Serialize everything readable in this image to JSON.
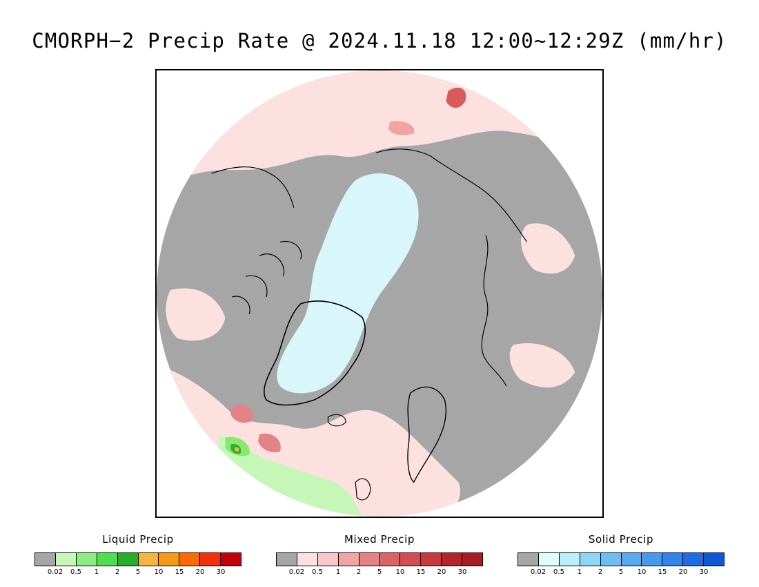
{
  "title": "CMORPH−2 Precip Rate @ 2024.11.18 12:00~12:29Z (mm/hr)",
  "map": {
    "projection": "north-polar-stereographic",
    "colors": {
      "no_precip": "#a6a6a6",
      "ocean_light_mixed": "#fde1e1",
      "mixed_medium": "#f5b8b8",
      "mixed_heavy": "#d65b5b",
      "solid_light": "#d9f7fb",
      "liquid_light": "#c6f7b9",
      "liquid_medium": "#86ea6e",
      "liquid_heavy": "#2fae2f",
      "liquid_extreme": "#f6b542",
      "coastline": "#000000"
    }
  },
  "legends": [
    {
      "name": "liquid",
      "title": "Liquid Precip",
      "colors": [
        "#a6a6a6",
        "#c6f7b9",
        "#8deb82",
        "#4fde4f",
        "#27ad27",
        "#f6b542",
        "#f69a16",
        "#fd6a05",
        "#f2300d",
        "#c4000b"
      ],
      "ticks": [
        "0.02",
        "0.5",
        "1",
        "2",
        "5",
        "10",
        "15",
        "20",
        "30"
      ]
    },
    {
      "name": "mixed",
      "title": "Mixed Precip",
      "colors": [
        "#a6a6a6",
        "#fde1e1",
        "#f9c7c8",
        "#f1a3a6",
        "#e58288",
        "#da6366",
        "#d44d52",
        "#c7393d",
        "#b52428",
        "#a51d20"
      ],
      "ticks": [
        "0.02",
        "0.5",
        "1",
        "2",
        "5",
        "10",
        "15",
        "20",
        "30"
      ]
    },
    {
      "name": "solid",
      "title": "Solid Precip",
      "colors": [
        "#a6a6a6",
        "#dffdfd",
        "#b8effa",
        "#8fd5f8",
        "#6ebdf3",
        "#59a9ef",
        "#4898ec",
        "#3483e8",
        "#1f6be1",
        "#0f58d4"
      ],
      "ticks": [
        "0.02",
        "0.5",
        "1",
        "2",
        "5",
        "10",
        "15",
        "20",
        "30"
      ]
    }
  ]
}
